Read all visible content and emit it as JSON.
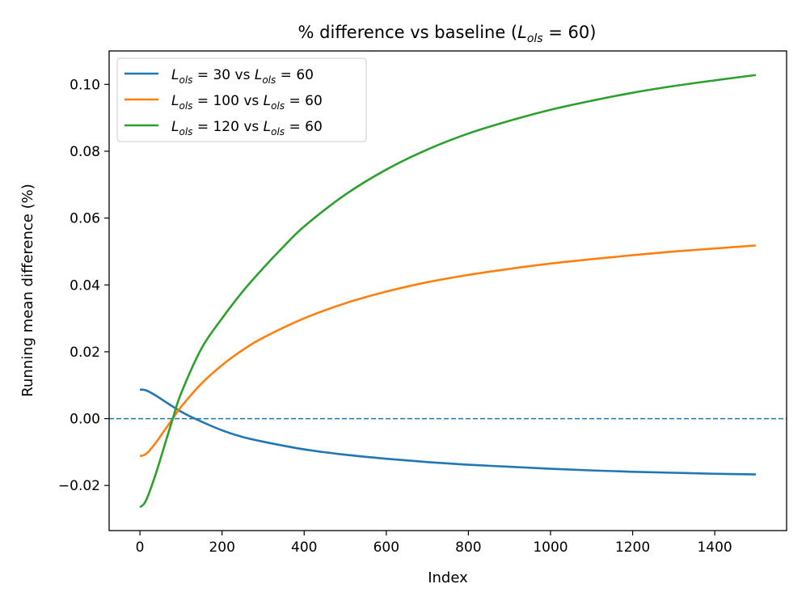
{
  "chart_data": {
    "type": "line",
    "title": {
      "prefix": "% difference vs baseline (",
      "sym": "L",
      "sub": "ols",
      "suffix": " = 60)"
    },
    "xlabel": "Index",
    "ylabel": "Running mean difference (%)",
    "xlim": [
      -75,
      1575
    ],
    "ylim": [
      -0.0335,
      0.11
    ],
    "xticks": [
      0,
      200,
      400,
      600,
      800,
      1000,
      1200,
      1400
    ],
    "xtick_labels": [
      "0",
      "200",
      "400",
      "600",
      "800",
      "1000",
      "1200",
      "1400"
    ],
    "yticks": [
      -0.02,
      0.0,
      0.02,
      0.04,
      0.06,
      0.08,
      0.1
    ],
    "ytick_labels": [
      "−0.02",
      "0.00",
      "0.02",
      "0.04",
      "0.06",
      "0.08",
      "0.10"
    ],
    "grid": false,
    "legend_position": "top-left",
    "reference_line": {
      "y": 0.0,
      "style": "dashed",
      "color": "#1f77b4"
    },
    "series": [
      {
        "name": "L_ols = 30 vs L_ols = 60",
        "legend": {
          "sym": "L",
          "sub": "ols",
          "mid": " = 30 vs ",
          "sym2": "L",
          "sub2": "ols",
          "end": " = 60"
        },
        "color": "#1f77b4",
        "x": [
          0,
          10,
          20,
          40,
          60,
          80,
          100,
          120,
          150,
          200,
          250,
          300,
          400,
          500,
          600,
          700,
          800,
          900,
          1000,
          1100,
          1200,
          1300,
          1400,
          1500
        ],
        "y": [
          0.0087,
          0.0086,
          0.0082,
          0.0068,
          0.0052,
          0.0036,
          0.0021,
          0.0008,
          -0.0009,
          -0.0035,
          -0.0055,
          -0.0069,
          -0.0092,
          -0.0108,
          -0.012,
          -0.013,
          -0.0138,
          -0.0144,
          -0.015,
          -0.0155,
          -0.0159,
          -0.0162,
          -0.0165,
          -0.0167
        ]
      },
      {
        "name": "L_ols = 100 vs L_ols = 60",
        "legend": {
          "sym": "L",
          "sub": "ols",
          "mid": " = 100 vs ",
          "sym2": "L",
          "sub2": "ols",
          "end": " = 60"
        },
        "color": "#ff7f0e",
        "x": [
          0,
          10,
          20,
          40,
          60,
          80,
          100,
          150,
          200,
          250,
          300,
          400,
          500,
          600,
          700,
          800,
          900,
          1000,
          1100,
          1200,
          1300,
          1400,
          1500
        ],
        "y": [
          -0.0112,
          -0.0109,
          -0.01,
          -0.007,
          -0.0035,
          0.0,
          0.0035,
          0.0105,
          0.016,
          0.0205,
          0.0242,
          0.03,
          0.0345,
          0.038,
          0.0408,
          0.043,
          0.0448,
          0.0464,
          0.0477,
          0.0489,
          0.05,
          0.0509,
          0.0518
        ]
      },
      {
        "name": "L_ols = 120 vs L_ols = 60",
        "legend": {
          "sym": "L",
          "sub": "ols",
          "mid": " = 120 vs ",
          "sym2": "L",
          "sub2": "ols",
          "end": " = 60"
        },
        "color": "#2ca02c",
        "x": [
          0,
          10,
          20,
          40,
          60,
          80,
          100,
          150,
          200,
          250,
          300,
          350,
          400,
          500,
          600,
          700,
          800,
          900,
          1000,
          1100,
          1200,
          1300,
          1400,
          1500
        ],
        "y": [
          -0.0265,
          -0.0255,
          -0.023,
          -0.016,
          -0.008,
          0.0,
          0.0075,
          0.021,
          0.03,
          0.038,
          0.045,
          0.0515,
          0.0575,
          0.067,
          0.0745,
          0.0805,
          0.0853,
          0.0891,
          0.0924,
          0.0951,
          0.0975,
          0.0995,
          0.1012,
          0.1028
        ]
      }
    ]
  }
}
